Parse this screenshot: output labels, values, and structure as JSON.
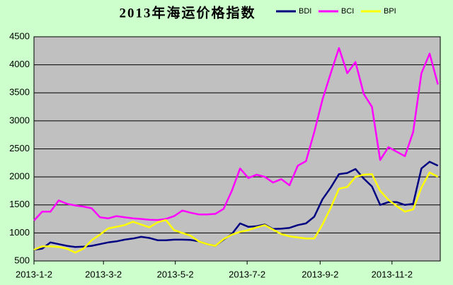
{
  "chart_data": {
    "type": "line",
    "title": "2013年海运价格指数",
    "legend": "top",
    "grid": true,
    "x": [
      "2013-1-2",
      "2013-1-9",
      "2013-1-16",
      "2013-1-23",
      "2013-1-30",
      "2013-2-6",
      "2013-2-13",
      "2013-2-20",
      "2013-2-27",
      "2013-3-6",
      "2013-3-13",
      "2013-3-20",
      "2013-3-27",
      "2013-4-3",
      "2013-4-10",
      "2013-4-17",
      "2013-4-24",
      "2013-5-1",
      "2013-5-8",
      "2013-5-15",
      "2013-5-22",
      "2013-5-29",
      "2013-6-5",
      "2013-6-12",
      "2013-6-19",
      "2013-6-26",
      "2013-7-3",
      "2013-7-10",
      "2013-7-17",
      "2013-7-24",
      "2013-7-31",
      "2013-8-7",
      "2013-8-14",
      "2013-8-21",
      "2013-8-28",
      "2013-9-4",
      "2013-9-11",
      "2013-9-18",
      "2013-9-25",
      "2013-10-2",
      "2013-10-9",
      "2013-10-16",
      "2013-10-23",
      "2013-10-30",
      "2013-11-6",
      "2013-11-13",
      "2013-11-20",
      "2013-11-27",
      "2013-12-4",
      "2013-12-11"
    ],
    "series": [
      {
        "name": "BDI",
        "color": "#000080",
        "values": [
          700,
          720,
          830,
          800,
          770,
          750,
          755,
          770,
          800,
          830,
          850,
          880,
          900,
          930,
          910,
          870,
          870,
          880,
          880,
          875,
          850,
          800,
          770,
          880,
          980,
          1170,
          1110,
          1120,
          1150,
          1070,
          1075,
          1090,
          1140,
          1170,
          1290,
          1600,
          1810,
          2050,
          2070,
          2140,
          1970,
          1830,
          1500,
          1550,
          1550,
          1500,
          1520,
          2150,
          2270,
          2200
        ]
      },
      {
        "name": "BCI",
        "color": "#ff00ff",
        "values": [
          1220,
          1380,
          1380,
          1580,
          1520,
          1490,
          1470,
          1440,
          1280,
          1260,
          1300,
          1280,
          1260,
          1250,
          1235,
          1230,
          1250,
          1300,
          1400,
          1360,
          1330,
          1330,
          1340,
          1430,
          1750,
          2150,
          1980,
          2040,
          2000,
          1900,
          1960,
          1850,
          2200,
          2280,
          2800,
          3380,
          3850,
          4300,
          3850,
          4050,
          3480,
          3250,
          2300,
          2530,
          2450,
          2370,
          2800,
          3850,
          4200,
          3650
        ]
      },
      {
        "name": "BPI",
        "color": "#ffff00",
        "values": [
          700,
          760,
          760,
          750,
          720,
          650,
          720,
          870,
          970,
          1080,
          1110,
          1140,
          1200,
          1150,
          1100,
          1190,
          1230,
          1050,
          1000,
          950,
          850,
          800,
          770,
          890,
          970,
          1020,
          1050,
          1100,
          1140,
          1060,
          980,
          940,
          920,
          900,
          900,
          1150,
          1450,
          1790,
          1820,
          2000,
          2040,
          2050,
          1750,
          1590,
          1480,
          1380,
          1420,
          1810,
          2080,
          2000
        ]
      }
    ],
    "xlim": [
      "2013-1-2",
      "2013-12-13"
    ],
    "xticks": [
      "2013-1-2",
      "2013-3-2",
      "2013-5-2",
      "2013-7-2",
      "2013-9-2",
      "2013-11-2"
    ],
    "ylim": [
      500,
      4500
    ],
    "yticks": [
      500,
      1000,
      1500,
      2000,
      2500,
      3000,
      3500,
      4000,
      4500
    ]
  }
}
